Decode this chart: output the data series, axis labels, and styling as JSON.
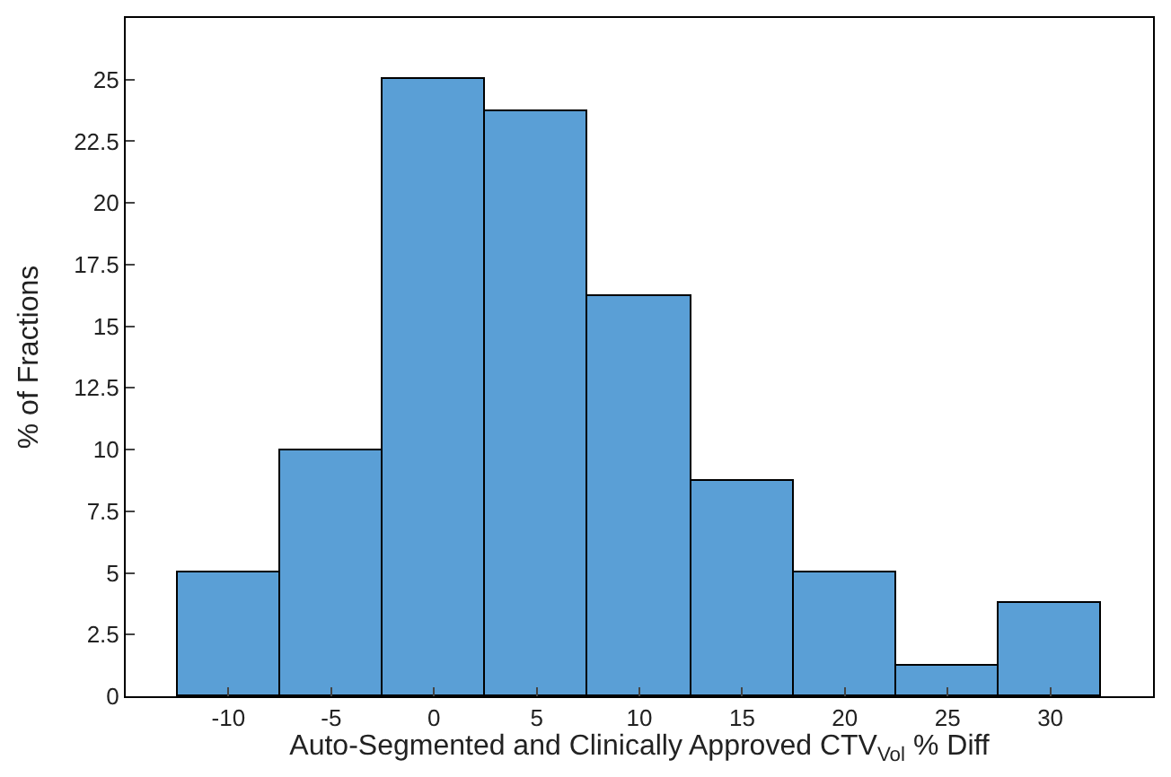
{
  "chart_data": {
    "type": "histogram",
    "xlabel": "Auto-Segmented and Clinically Approved CTV$_{Vol}$ % Diff",
    "ylabel": "% of Fractions",
    "bins": [
      -12.5,
      -7.5,
      -2.5,
      2.5,
      7.5,
      12.5,
      17.5,
      22.5,
      27.5,
      32.5
    ],
    "values": [
      5,
      10,
      25,
      23.75,
      16.25,
      8.75,
      5,
      1.25,
      3.75
    ],
    "color": "#5a9fd6",
    "xlim": [
      -15,
      35
    ],
    "xticks": [
      -10,
      -5,
      0,
      5,
      10,
      15,
      20,
      25,
      30
    ],
    "ylim": [
      0,
      27.5
    ],
    "yticks": [
      0,
      2.5,
      5,
      7.5,
      10,
      12.5,
      15,
      17.5,
      20,
      22.5,
      25
    ]
  }
}
